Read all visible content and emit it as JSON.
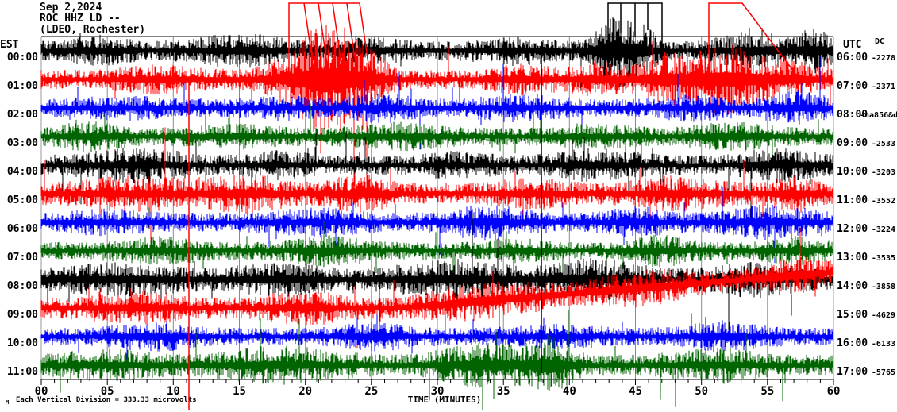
{
  "header": {
    "date": "Sep 2,2024",
    "station": "ROC HHZ LD --",
    "location": "(LDEO, Rochester)"
  },
  "left_axis": {
    "label": "EST"
  },
  "right_axis": {
    "label": "UTC",
    "dc_label": "DC"
  },
  "x_axis": {
    "title": "TIME (MINUTES)",
    "tick_labels": [
      "00",
      "05",
      "10",
      "15",
      "20",
      "25",
      "30",
      "35",
      "40",
      "45",
      "50",
      "55",
      "60"
    ],
    "minor_ticks_per_major": 5
  },
  "footer": {
    "scale_note": "Each Vertical Division = 333.33 microvolts",
    "corner_mark": "M"
  },
  "chart_data": {
    "type": "helicorder-seismogram",
    "title": "ROC HHZ LD -- (LDEO, Rochester) Sep 2,2024",
    "x_range_minutes": [
      0,
      60
    ],
    "minutes_per_line": 60,
    "grid": "vertical-5min",
    "colors": {
      "black": "#000000",
      "red": "#ff0000",
      "blue": "#0000ff",
      "green": "#006400",
      "grid": "#8a8a8a",
      "frame": "#000000",
      "side_frame": "#999999"
    },
    "rows": [
      {
        "est": "00:00",
        "utc": "06:00",
        "dc": "-2278",
        "color": "black",
        "amp": 12,
        "drift": 0,
        "bursts": [
          [
            70,
            40,
            0.7
          ],
          [
            250,
            60,
            0.9
          ],
          [
            420,
            40,
            0.5
          ],
          [
            600,
            50,
            0.6
          ],
          [
            714,
            22,
            2.6
          ],
          [
            748,
            25,
            2.4
          ],
          [
            900,
            50,
            1.1
          ],
          [
            975,
            20,
            1.4
          ]
        ]
      },
      {
        "est": "01:00",
        "utc": "07:00",
        "dc": "-2371",
        "color": "red",
        "amp": 12,
        "drift": 0,
        "bursts": [
          [
            150,
            60,
            0.6
          ],
          [
            330,
            45,
            2.2
          ],
          [
            360,
            30,
            3.2
          ],
          [
            400,
            35,
            2.6
          ],
          [
            610,
            40,
            0.8
          ],
          [
            700,
            30,
            1.0
          ],
          [
            790,
            40,
            1.8
          ],
          [
            865,
            45,
            2.8
          ],
          [
            940,
            40,
            1.2
          ]
        ]
      },
      {
        "est": "02:00",
        "utc": "08:00",
        "dc": "-na856&d",
        "color": "blue",
        "amp": 11,
        "drift": 0,
        "bursts": [
          [
            100,
            60,
            0.5
          ],
          [
            300,
            50,
            0.5
          ],
          [
            430,
            40,
            0.8
          ],
          [
            600,
            60,
            0.7
          ],
          [
            820,
            50,
            0.6
          ],
          [
            950,
            40,
            1.0
          ]
        ]
      },
      {
        "est": "03:00",
        "utc": "09:00",
        "dc": "-2533",
        "color": "green",
        "amp": 11,
        "drift": 0,
        "bursts": [
          [
            60,
            40,
            0.8
          ],
          [
            250,
            60,
            0.5
          ],
          [
            450,
            60,
            0.7
          ],
          [
            700,
            50,
            0.5
          ],
          [
            870,
            50,
            0.8
          ]
        ]
      },
      {
        "est": "04:00",
        "utc": "10:00",
        "dc": "-3203",
        "color": "black",
        "amp": 12,
        "drift": 0,
        "bursts": [
          [
            120,
            70,
            0.9
          ],
          [
            300,
            40,
            0.6
          ],
          [
            520,
            50,
            0.5
          ],
          [
            700,
            60,
            0.8
          ],
          [
            930,
            50,
            0.9
          ]
        ]
      },
      {
        "est": "05:00",
        "utc": "11:00",
        "dc": "-3552",
        "color": "red",
        "amp": 13,
        "drift": 0,
        "bursts": [
          [
            120,
            80,
            0.8
          ],
          [
            260,
            50,
            1.0
          ],
          [
            400,
            40,
            0.9
          ],
          [
            620,
            50,
            0.6
          ],
          [
            800,
            60,
            0.8
          ],
          [
            950,
            30,
            0.9
          ]
        ]
      },
      {
        "est": "06:00",
        "utc": "12:00",
        "dc": "-3224",
        "color": "blue",
        "amp": 12,
        "drift": 0,
        "bursts": [
          [
            80,
            50,
            0.5
          ],
          [
            350,
            60,
            0.6
          ],
          [
            560,
            50,
            0.9
          ],
          [
            750,
            40,
            0.7
          ],
          [
            920,
            60,
            0.9
          ]
        ]
      },
      {
        "est": "07:00",
        "utc": "13:00",
        "dc": "-3535",
        "color": "green",
        "amp": 11,
        "drift": 0,
        "bursts": [
          [
            150,
            60,
            0.6
          ],
          [
            360,
            50,
            0.9
          ],
          [
            600,
            40,
            0.5
          ],
          [
            780,
            40,
            0.9
          ],
          [
            950,
            40,
            0.7
          ]
        ]
      },
      {
        "est": "08:00",
        "utc": "14:00",
        "dc": "-3858",
        "color": "black",
        "amp": 13,
        "drift": 0,
        "bursts": [
          [
            100,
            80,
            0.7
          ],
          [
            300,
            60,
            0.8
          ],
          [
            520,
            80,
            1.0
          ],
          [
            700,
            60,
            1.1
          ],
          [
            900,
            60,
            0.8
          ]
        ]
      },
      {
        "est": "09:00",
        "utc": "15:00",
        "dc": "-4629",
        "color": "red",
        "amp": 13,
        "drift": 45,
        "bursts": [
          [
            120,
            60,
            0.7
          ],
          [
            330,
            50,
            0.8
          ],
          [
            560,
            80,
            0.9
          ],
          [
            760,
            60,
            0.9
          ],
          [
            950,
            40,
            0.9
          ]
        ]
      },
      {
        "est": "10:00",
        "utc": "16:00",
        "dc": "-6133",
        "color": "blue",
        "amp": 11,
        "drift": 0,
        "bursts": [
          [
            140,
            50,
            0.8
          ],
          [
            420,
            50,
            0.7
          ],
          [
            650,
            60,
            0.5
          ],
          [
            860,
            50,
            0.9
          ]
        ]
      },
      {
        "est": "11:00",
        "utc": "17:00",
        "dc": "-5765",
        "color": "green",
        "amp": 13,
        "drift": 0,
        "bursts": [
          [
            80,
            60,
            0.6
          ],
          [
            300,
            80,
            0.9
          ],
          [
            560,
            60,
            1.3
          ],
          [
            640,
            30,
            1.8
          ],
          [
            850,
            60,
            0.7
          ]
        ]
      }
    ],
    "clip_shapes": [
      {
        "color": "#ff0000",
        "points": [
          [
            364,
            110
          ],
          [
            364,
            4
          ],
          [
            453,
            4
          ]
        ]
      },
      {
        "color": "#ff0000",
        "points": [
          [
            383,
            4
          ],
          [
            399,
            115
          ]
        ]
      },
      {
        "color": "#ff0000",
        "points": [
          [
            401,
            4
          ],
          [
            417,
            115
          ]
        ]
      },
      {
        "color": "#ff0000",
        "points": [
          [
            419,
            4
          ],
          [
            435,
            115
          ]
        ]
      },
      {
        "color": "#ff0000",
        "points": [
          [
            437,
            4
          ],
          [
            453,
            115
          ]
        ]
      },
      {
        "color": "#ff0000",
        "points": [
          [
            453,
            4
          ],
          [
            469,
            115
          ]
        ]
      },
      {
        "color": "#000000",
        "points": [
          [
            766,
            60
          ],
          [
            766,
            4
          ],
          [
            834,
            4
          ],
          [
            834,
            60
          ]
        ]
      },
      {
        "color": "#000000",
        "points": [
          [
            782,
            4
          ],
          [
            782,
            42
          ]
        ]
      },
      {
        "color": "#000000",
        "points": [
          [
            800,
            4
          ],
          [
            800,
            46
          ]
        ]
      },
      {
        "color": "#000000",
        "points": [
          [
            816,
            4
          ],
          [
            816,
            38
          ]
        ]
      },
      {
        "color": "#ff0000",
        "points": [
          [
            893,
            120
          ],
          [
            893,
            4
          ],
          [
            935,
            4
          ],
          [
            1012,
            106
          ]
        ]
      },
      {
        "color": "#ff0000",
        "points": [
          [
            238,
            98
          ],
          [
            238,
            517
          ]
        ]
      },
      {
        "color": "#000000",
        "points": [
          [
            682,
            52
          ],
          [
            682,
            470
          ]
        ]
      }
    ]
  }
}
